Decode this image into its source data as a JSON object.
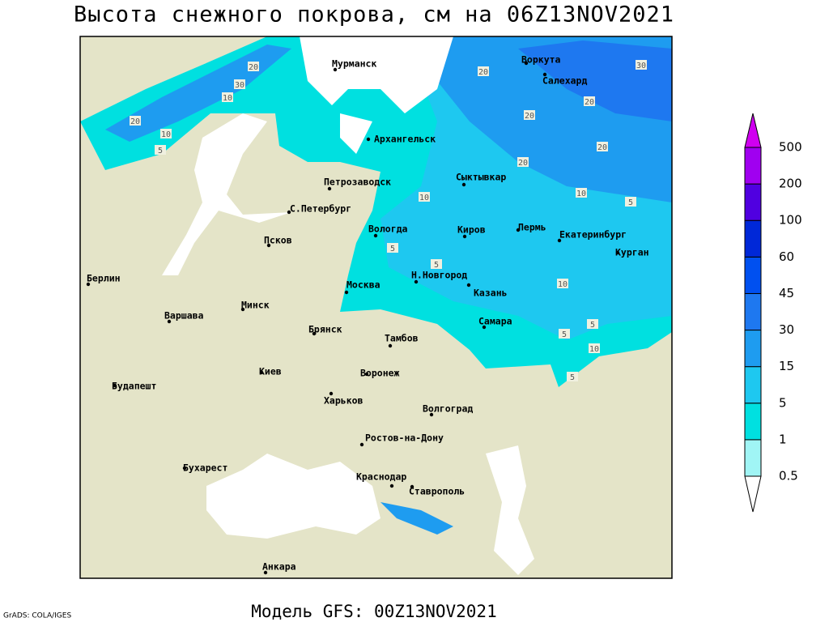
{
  "title": "Высота снежного покрова, см на 06Z13NOV2021",
  "footer": "Модель GFS: 00Z13NOV2021",
  "credit": "GrADS: COLA/IGES",
  "cities": [
    "Мурманск",
    "Воркута",
    "Салехард",
    "Архангельск",
    "Сыктывкар",
    "Петрозаводск",
    "С.Петербург",
    "Вологда",
    "Киров",
    "Пермь",
    "Екатеринбург",
    "Курган",
    "Псков",
    "Н.Новгород",
    "Москва",
    "Казань",
    "Берлин",
    "Минск",
    "Варшава",
    "Брянск",
    "Тамбов",
    "Самара",
    "Киев",
    "Воронеж",
    "Харьков",
    "Будапешт",
    "Волгоград",
    "Ростов-на-Дону",
    "Бухарест",
    "Краснодар",
    "Ставрополь",
    "Анкара"
  ],
  "contour_labels": [
    20,
    30,
    10,
    20,
    10,
    5,
    20,
    30,
    20,
    20,
    20,
    20,
    10,
    10,
    5,
    5,
    5,
    10,
    5,
    5,
    10,
    5
  ],
  "legend": {
    "levels": [
      0.5,
      1,
      5,
      15,
      30,
      45,
      60,
      100,
      200,
      500
    ],
    "colors": [
      "#ffffff",
      "#a0f5f5",
      "#00e0e0",
      "#1ec8f0",
      "#1e9cf0",
      "#1e78f0",
      "#0050f0",
      "#0028d8",
      "#5000e0",
      "#a000f0",
      "#d000f0"
    ]
  }
}
